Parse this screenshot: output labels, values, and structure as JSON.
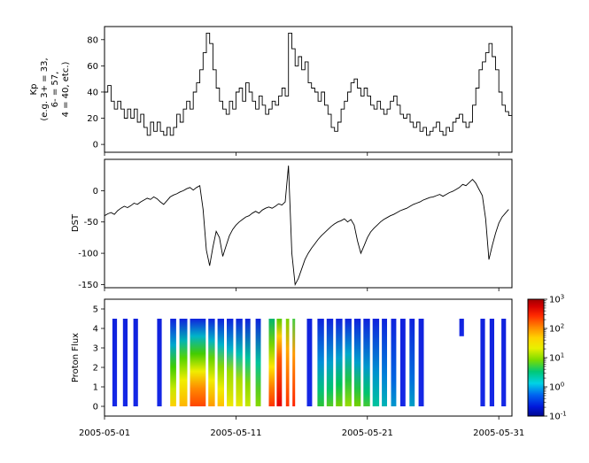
{
  "x_axis": {
    "tick_labels": [
      "2005-05-01",
      "2005-05-11",
      "2005-05-21",
      "2005-05-31"
    ],
    "tick_days": [
      1,
      11,
      21,
      31
    ],
    "xlim_days": [
      1,
      32
    ]
  },
  "chart_data": [
    {
      "type": "line",
      "name": "kp",
      "ylabel": "Kp (e.g. 3+ = 33, 6- = 57, 4 = 40, etc.)",
      "ylabel_lines": [
        "Kp",
        "(e.g. 3+ = 33,",
        "6- = 57,",
        "4 = 40, etc.)"
      ],
      "ylim": [
        -6,
        90
      ],
      "yticks": [
        0,
        20,
        40,
        60,
        80
      ],
      "step": true,
      "start_day": 1,
      "samples_per_day": 4,
      "line_color": "#000000",
      "values": [
        40,
        45,
        33,
        27,
        33,
        27,
        20,
        27,
        20,
        27,
        17,
        23,
        13,
        7,
        17,
        10,
        17,
        10,
        7,
        13,
        7,
        13,
        23,
        17,
        27,
        33,
        27,
        40,
        47,
        57,
        70,
        85,
        77,
        57,
        43,
        33,
        27,
        23,
        33,
        27,
        40,
        43,
        33,
        47,
        40,
        33,
        27,
        37,
        30,
        23,
        27,
        33,
        30,
        37,
        43,
        37,
        85,
        73,
        60,
        67,
        57,
        63,
        47,
        43,
        40,
        33,
        40,
        30,
        23,
        13,
        10,
        17,
        27,
        33,
        40,
        47,
        50,
        43,
        37,
        43,
        37,
        30,
        27,
        33,
        27,
        23,
        27,
        33,
        37,
        30,
        23,
        20,
        23,
        17,
        13,
        17,
        10,
        13,
        7,
        10,
        13,
        17,
        10,
        7,
        13,
        10,
        17,
        20,
        23,
        17,
        13,
        17,
        30,
        43,
        57,
        63,
        70,
        77,
        67,
        57,
        40,
        30,
        25,
        22
      ]
    },
    {
      "type": "line",
      "name": "dst",
      "ylabel": "DST",
      "ylim": [
        -155,
        50
      ],
      "yticks": [
        0,
        -50,
        -100,
        -150
      ],
      "step": false,
      "start_day": 1,
      "samples_per_day": 4,
      "line_color": "#000000",
      "values": [
        -40,
        -37,
        -35,
        -38,
        -32,
        -28,
        -25,
        -27,
        -24,
        -20,
        -22,
        -18,
        -15,
        -12,
        -14,
        -10,
        -13,
        -18,
        -22,
        -16,
        -10,
        -7,
        -5,
        -2,
        0,
        3,
        5,
        1,
        5,
        8,
        -30,
        -95,
        -120,
        -90,
        -65,
        -75,
        -105,
        -88,
        -72,
        -62,
        -55,
        -50,
        -46,
        -42,
        -40,
        -36,
        -33,
        -36,
        -31,
        -28,
        -26,
        -28,
        -25,
        -21,
        -23,
        -18,
        40,
        -100,
        -150,
        -140,
        -125,
        -110,
        -100,
        -92,
        -85,
        -78,
        -72,
        -67,
        -62,
        -57,
        -53,
        -50,
        -48,
        -45,
        -50,
        -46,
        -55,
        -80,
        -100,
        -88,
        -75,
        -66,
        -60,
        -55,
        -50,
        -46,
        -43,
        -40,
        -38,
        -35,
        -32,
        -30,
        -28,
        -25,
        -22,
        -20,
        -18,
        -15,
        -13,
        -11,
        -10,
        -8,
        -6,
        -9,
        -6,
        -3,
        -1,
        2,
        5,
        10,
        8,
        13,
        18,
        12,
        2,
        -8,
        -45,
        -110,
        -88,
        -68,
        -52,
        -42,
        -36,
        -30
      ]
    },
    {
      "type": "heatmap",
      "name": "proton-flux",
      "ylabel": "Proton Flux",
      "ylim": [
        -0.5,
        5.5
      ],
      "yticks": [
        0,
        1,
        2,
        3,
        4,
        5
      ],
      "band_vmin": 0,
      "band_vmax": 4.5,
      "bands": [
        {
          "d0": 1.6,
          "d1": 1.95,
          "stops": [
            [
              0,
              "#1022dd"
            ],
            [
              1,
              "#1528e6"
            ]
          ]
        },
        {
          "d0": 2.4,
          "d1": 2.75,
          "stops": [
            [
              0,
              "#1022dd"
            ],
            [
              1,
              "#1528e6"
            ]
          ]
        },
        {
          "d0": 3.2,
          "d1": 3.55,
          "stops": [
            [
              0,
              "#1022dd"
            ],
            [
              1,
              "#1528e6"
            ]
          ]
        },
        {
          "d0": 5.0,
          "d1": 5.35,
          "stops": [
            [
              0,
              "#1022dd"
            ],
            [
              1,
              "#1528e6"
            ]
          ]
        },
        {
          "d0": 6.0,
          "d1": 6.45,
          "stops": [
            [
              0,
              "#1022dd"
            ],
            [
              0.3,
              "#00a8cc"
            ],
            [
              0.55,
              "#3ecc00"
            ],
            [
              0.8,
              "#c8e800"
            ],
            [
              1,
              "#ffd000"
            ]
          ]
        },
        {
          "d0": 6.7,
          "d1": 7.3,
          "stops": [
            [
              0,
              "#1022dd"
            ],
            [
              0.25,
              "#00b4b4"
            ],
            [
              0.45,
              "#55d400"
            ],
            [
              0.7,
              "#f0ee00"
            ],
            [
              1,
              "#ffb400"
            ]
          ]
        },
        {
          "d0": 7.5,
          "d1": 8.7,
          "stops": [
            [
              0,
              "#1022dd"
            ],
            [
              0.2,
              "#00b4c8"
            ],
            [
              0.4,
              "#44cc00"
            ],
            [
              0.6,
              "#f0ee00"
            ],
            [
              0.8,
              "#ff8800"
            ],
            [
              1,
              "#ff4400"
            ]
          ]
        },
        {
          "d0": 8.9,
          "d1": 9.4,
          "stops": [
            [
              0,
              "#1022dd"
            ],
            [
              0.25,
              "#00b4c8"
            ],
            [
              0.45,
              "#66d400"
            ],
            [
              0.7,
              "#f0ee00"
            ],
            [
              1,
              "#ff9900"
            ]
          ]
        },
        {
          "d0": 9.6,
          "d1": 10.1,
          "stops": [
            [
              0,
              "#1022dd"
            ],
            [
              0.3,
              "#00b4c8"
            ],
            [
              0.55,
              "#88d800"
            ],
            [
              0.8,
              "#f0ee00"
            ],
            [
              1,
              "#ffc000"
            ]
          ]
        },
        {
          "d0": 10.3,
          "d1": 10.8,
          "stops": [
            [
              0,
              "#1022dd"
            ],
            [
              0.35,
              "#00b4c8"
            ],
            [
              0.6,
              "#99dd00"
            ],
            [
              1,
              "#f0e800"
            ]
          ]
        },
        {
          "d0": 11.0,
          "d1": 11.5,
          "stops": [
            [
              0,
              "#1022dd"
            ],
            [
              0.4,
              "#00c0b4"
            ],
            [
              0.7,
              "#aadd00"
            ],
            [
              1,
              "#e8e800"
            ]
          ]
        },
        {
          "d0": 11.7,
          "d1": 12.1,
          "stops": [
            [
              0,
              "#1022dd"
            ],
            [
              0.45,
              "#00c49c"
            ],
            [
              0.75,
              "#88d800"
            ],
            [
              1,
              "#c8e800"
            ]
          ]
        },
        {
          "d0": 12.5,
          "d1": 12.9,
          "stops": [
            [
              0,
              "#1022dd"
            ],
            [
              0.5,
              "#00c49c"
            ],
            [
              0.8,
              "#55cc22"
            ],
            [
              1,
              "#88d800"
            ]
          ]
        },
        {
          "d0": 13.5,
          "d1": 13.95,
          "stops": [
            [
              0,
              "#00b470"
            ],
            [
              0.3,
              "#7bd400"
            ],
            [
              0.55,
              "#ffe400"
            ],
            [
              0.8,
              "#ff7700"
            ],
            [
              1,
              "#ff3300"
            ]
          ]
        },
        {
          "d0": 14.1,
          "d1": 14.5,
          "stops": [
            [
              0,
              "#55cc00"
            ],
            [
              0.2,
              "#ffcc00"
            ],
            [
              0.45,
              "#ff5500"
            ],
            [
              1,
              "#e60000"
            ]
          ]
        },
        {
          "d0": 14.8,
          "d1": 15.05,
          "stops": [
            [
              0,
              "#7bd400"
            ],
            [
              0.35,
              "#ffaa00"
            ],
            [
              1,
              "#ff3300"
            ]
          ]
        },
        {
          "d0": 15.3,
          "d1": 15.5,
          "stops": [
            [
              0,
              "#44cc44"
            ],
            [
              0.4,
              "#ff9900"
            ],
            [
              1,
              "#ff2200"
            ]
          ]
        },
        {
          "d0": 16.4,
          "d1": 16.8,
          "stops": [
            [
              0,
              "#1022dd"
            ],
            [
              1,
              "#1528e6"
            ]
          ]
        },
        {
          "d0": 17.2,
          "d1": 17.7,
          "stops": [
            [
              0,
              "#1022dd"
            ],
            [
              0.5,
              "#0090d8"
            ],
            [
              0.8,
              "#00c080"
            ],
            [
              1,
              "#2cc435"
            ]
          ]
        },
        {
          "d0": 17.9,
          "d1": 18.4,
          "stops": [
            [
              0,
              "#1022dd"
            ],
            [
              0.5,
              "#00a0cc"
            ],
            [
              0.8,
              "#00c46c"
            ],
            [
              1,
              "#55cc22"
            ]
          ]
        },
        {
          "d0": 18.6,
          "d1": 19.1,
          "stops": [
            [
              0,
              "#1022dd"
            ],
            [
              0.45,
              "#00a0cc"
            ],
            [
              0.75,
              "#00c455"
            ],
            [
              1,
              "#77d000"
            ]
          ]
        },
        {
          "d0": 19.3,
          "d1": 19.8,
          "stops": [
            [
              0,
              "#1022dd"
            ],
            [
              0.4,
              "#00a8cc"
            ],
            [
              0.7,
              "#22c444"
            ],
            [
              1,
              "#99dd00"
            ]
          ]
        },
        {
          "d0": 20.0,
          "d1": 20.5,
          "stops": [
            [
              0,
              "#1022dd"
            ],
            [
              0.5,
              "#00a0cc"
            ],
            [
              0.8,
              "#22c444"
            ],
            [
              1,
              "#77d000"
            ]
          ]
        },
        {
          "d0": 20.7,
          "d1": 21.2,
          "stops": [
            [
              0,
              "#1022dd"
            ],
            [
              0.55,
              "#0098cc"
            ],
            [
              0.85,
              "#00c46c"
            ],
            [
              1,
              "#44c833"
            ]
          ]
        },
        {
          "d0": 21.4,
          "d1": 21.9,
          "stops": [
            [
              0,
              "#1022dd"
            ],
            [
              0.6,
              "#0090d0"
            ],
            [
              1,
              "#00c49c"
            ]
          ]
        },
        {
          "d0": 22.1,
          "d1": 22.5,
          "stops": [
            [
              0,
              "#1022dd"
            ],
            [
              0.65,
              "#0080d8"
            ],
            [
              1,
              "#00b4b4"
            ]
          ]
        },
        {
          "d0": 22.8,
          "d1": 23.2,
          "stops": [
            [
              0,
              "#1022dd"
            ],
            [
              0.7,
              "#0066e0"
            ],
            [
              1,
              "#0098cc"
            ]
          ]
        },
        {
          "d0": 23.5,
          "d1": 23.9,
          "stops": [
            [
              0,
              "#1022dd"
            ],
            [
              1,
              "#1528e6"
            ]
          ]
        },
        {
          "d0": 24.2,
          "d1": 24.6,
          "stops": [
            [
              0,
              "#1022dd"
            ],
            [
              0.7,
              "#0070dc"
            ],
            [
              1,
              "#00a0c4"
            ]
          ]
        },
        {
          "d0": 24.9,
          "d1": 25.3,
          "stops": [
            [
              0,
              "#1022dd"
            ],
            [
              1,
              "#1528e6"
            ]
          ]
        },
        {
          "d0": 28.0,
          "d1": 28.35,
          "v0": 3.6,
          "v1": 4.5,
          "stops": [
            [
              0,
              "#1022dd"
            ],
            [
              1,
              "#1528e6"
            ]
          ]
        },
        {
          "d0": 29.6,
          "d1": 29.95,
          "stops": [
            [
              0,
              "#1022dd"
            ],
            [
              1,
              "#1528e6"
            ]
          ]
        },
        {
          "d0": 30.3,
          "d1": 30.65,
          "stops": [
            [
              0,
              "#1022dd"
            ],
            [
              1,
              "#1528e6"
            ]
          ]
        },
        {
          "d0": 31.2,
          "d1": 31.55,
          "stops": [
            [
              0,
              "#1022dd"
            ],
            [
              1,
              "#1528e6"
            ]
          ]
        }
      ],
      "colorbar": {
        "base": "10",
        "tick_exponents": [
          "3",
          "2",
          "1",
          "0",
          "-1"
        ],
        "gradient": [
          [
            0,
            "#a00000"
          ],
          [
            0.06,
            "#d40000"
          ],
          [
            0.14,
            "#ff2a00"
          ],
          [
            0.24,
            "#ff8800"
          ],
          [
            0.33,
            "#ffd200"
          ],
          [
            0.42,
            "#e8f000"
          ],
          [
            0.52,
            "#7bdc00"
          ],
          [
            0.62,
            "#00c878"
          ],
          [
            0.72,
            "#00d2e6"
          ],
          [
            0.82,
            "#0064f0"
          ],
          [
            0.92,
            "#0018dc"
          ],
          [
            1,
            "#000890"
          ]
        ]
      }
    }
  ]
}
